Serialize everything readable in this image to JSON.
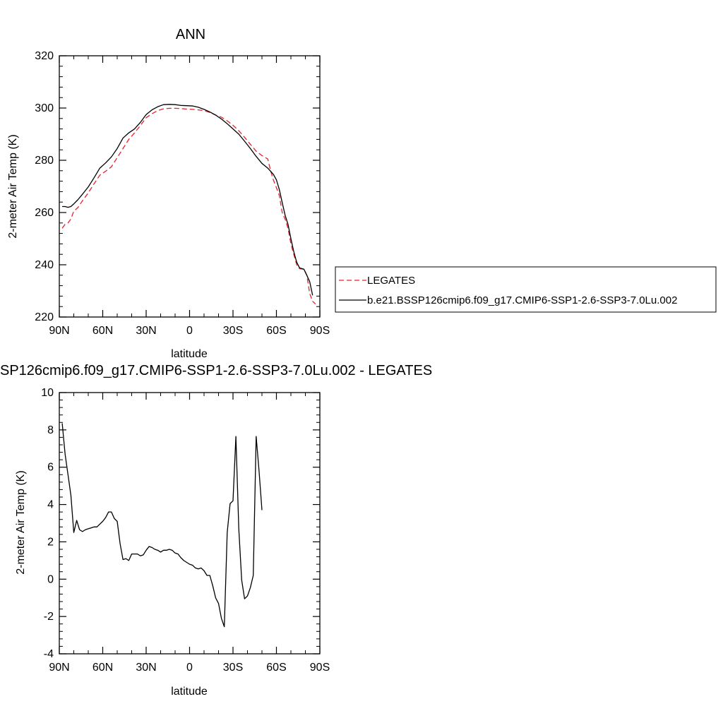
{
  "colors": {
    "obs": "#e8202a",
    "model": "#000000",
    "frame": "#000000"
  },
  "chart_data": [
    {
      "type": "line",
      "title": "ANN",
      "xlabel": "latitude",
      "ylabel": "2-meter Air Temp (K)",
      "x_range": [
        90,
        -90
      ],
      "x_ticks": [
        90,
        60,
        30,
        0,
        -30,
        -60,
        -90
      ],
      "x_tick_labels": [
        "90N",
        "60N",
        "30N",
        "0",
        "30S",
        "60S",
        "90S"
      ],
      "ylim": [
        220,
        320
      ],
      "y_ticks": [
        220,
        240,
        260,
        280,
        300,
        320
      ],
      "y_tick_labels": [
        "220",
        "240",
        "260",
        "280",
        "300",
        "320"
      ],
      "grid": false,
      "legend_position": "right",
      "series": [
        {
          "name": "LEGATES",
          "style": "dashed",
          "color": "#e8202a",
          "points": [
            [
              88,
              254
            ],
            [
              86,
              255.5
            ],
            [
              84,
              256
            ],
            [
              82,
              257.5
            ],
            [
              80,
              260.5
            ],
            [
              77,
              262
            ],
            [
              74,
              264.5
            ],
            [
              70,
              267.5
            ],
            [
              66,
              271
            ],
            [
              62,
              274.3
            ],
            [
              58,
              275.8
            ],
            [
              54,
              277.5
            ],
            [
              50,
              281
            ],
            [
              46,
              284.5
            ],
            [
              42,
              288
            ],
            [
              38,
              290.5
            ],
            [
              34,
              293.3
            ],
            [
              30,
              296.3
            ],
            [
              26,
              297.8
            ],
            [
              22,
              299
            ],
            [
              18,
              299.7
            ],
            [
              14,
              299.9
            ],
            [
              10,
              299.9
            ],
            [
              6,
              299.8
            ],
            [
              2,
              299.6
            ],
            [
              -2,
              299.5
            ],
            [
              -6,
              299.3
            ],
            [
              -10,
              299
            ],
            [
              -14,
              298.3
            ],
            [
              -18,
              297.3
            ],
            [
              -22,
              296.5
            ],
            [
              -26,
              295.1
            ],
            [
              -30,
              293.4
            ],
            [
              -34,
              291.3
            ],
            [
              -38,
              288.8
            ],
            [
              -42,
              286.1
            ],
            [
              -46,
              283.5
            ],
            [
              -50,
              281.8
            ],
            [
              -54,
              280.5
            ],
            [
              -56,
              276
            ],
            [
              -58,
              272.3
            ],
            [
              -60,
              269.5
            ],
            [
              -62,
              266.5
            ],
            [
              -64,
              260
            ],
            [
              -66,
              257.5
            ],
            [
              -68,
              254
            ],
            [
              -70,
              248
            ],
            [
              -72,
              244
            ],
            [
              -74,
              240
            ],
            [
              -76,
              238.5
            ],
            [
              -79,
              238.3
            ],
            [
              -81,
              236
            ],
            [
              -83,
              229
            ],
            [
              -85,
              226
            ],
            [
              -87,
              225
            ]
          ]
        },
        {
          "name": "b.e21.BSSP126cmip6.f09_g17.CMIP6-SSP1-2.6-SSP3-7.0Lu.002",
          "style": "solid",
          "color": "#000000",
          "points": [
            [
              88,
              262.3
            ],
            [
              86,
              262.3
            ],
            [
              84,
              262
            ],
            [
              82,
              262.3
            ],
            [
              80,
              263.3
            ],
            [
              77,
              265
            ],
            [
              74,
              267
            ],
            [
              70,
              269.8
            ],
            [
              66,
              273.3
            ],
            [
              62,
              277
            ],
            [
              58,
              279
            ],
            [
              54,
              281.3
            ],
            [
              50,
              284.5
            ],
            [
              46,
              288.5
            ],
            [
              42,
              290.5
            ],
            [
              38,
              292
            ],
            [
              34,
              294.5
            ],
            [
              30,
              297.5
            ],
            [
              26,
              299.3
            ],
            [
              22,
              300.5
            ],
            [
              18,
              301.3
            ],
            [
              14,
              301.4
            ],
            [
              10,
              301.3
            ],
            [
              6,
              301
            ],
            [
              2,
              300.9
            ],
            [
              -2,
              300.8
            ],
            [
              -6,
              300.3
            ],
            [
              -10,
              299.5
            ],
            [
              -14,
              298.5
            ],
            [
              -18,
              297.3
            ],
            [
              -22,
              295.8
            ],
            [
              -26,
              294
            ],
            [
              -30,
              292
            ],
            [
              -34,
              290
            ],
            [
              -38,
              287.3
            ],
            [
              -42,
              284.5
            ],
            [
              -46,
              281.5
            ],
            [
              -50,
              278.8
            ],
            [
              -54,
              277
            ],
            [
              -56,
              275.8
            ],
            [
              -58,
              274.5
            ],
            [
              -60,
              272.5
            ],
            [
              -62,
              268.8
            ],
            [
              -64,
              263.8
            ],
            [
              -66,
              259
            ],
            [
              -68,
              255.5
            ],
            [
              -70,
              250
            ],
            [
              -72,
              245
            ],
            [
              -74,
              241
            ],
            [
              -76,
              238.8
            ],
            [
              -79,
              238.3
            ],
            [
              -81,
              236
            ],
            [
              -83,
              233.5
            ],
            [
              -85,
              228.3
            ]
          ]
        }
      ]
    },
    {
      "type": "line",
      "title": "SP126cmip6.f09_g17.CMIP6-SSP1-2.6-SSP3-7.0Lu.002 - LEGATES",
      "xlabel": "latitude",
      "ylabel": "2-meter Air Temp (K)",
      "x_range": [
        90,
        -90
      ],
      "x_ticks": [
        90,
        60,
        30,
        0,
        -30,
        -60,
        -90
      ],
      "x_tick_labels": [
        "90N",
        "60N",
        "30N",
        "0",
        "30S",
        "60S",
        "90S"
      ],
      "ylim": [
        -4,
        10
      ],
      "y_ticks": [
        -4,
        -2,
        0,
        2,
        4,
        6,
        8,
        10
      ],
      "y_tick_labels": [
        "-4",
        "-2",
        "0",
        "2",
        "4",
        "6",
        "8",
        "10"
      ],
      "grid": false,
      "series": [
        {
          "style": "solid",
          "color": "#000000",
          "points": [
            [
              88,
              8.35
            ],
            [
              86,
              6.7
            ],
            [
              84,
              5.6
            ],
            [
              82,
              4.5
            ],
            [
              80,
              2.5
            ],
            [
              78,
              3.15
            ],
            [
              76,
              2.65
            ],
            [
              74,
              2.55
            ],
            [
              72,
              2.65
            ],
            [
              70,
              2.7
            ],
            [
              68,
              2.75
            ],
            [
              66,
              2.8
            ],
            [
              64,
              2.8
            ],
            [
              62,
              2.95
            ],
            [
              60,
              3.1
            ],
            [
              58,
              3.3
            ],
            [
              56,
              3.6
            ],
            [
              54,
              3.6
            ],
            [
              52,
              3.25
            ],
            [
              50,
              3.1
            ],
            [
              48,
              1.9
            ],
            [
              46,
              1.05
            ],
            [
              44,
              1.1
            ],
            [
              42,
              1.0
            ],
            [
              40,
              1.35
            ],
            [
              38,
              1.35
            ],
            [
              36,
              1.35
            ],
            [
              34,
              1.25
            ],
            [
              32,
              1.3
            ],
            [
              30,
              1.55
            ],
            [
              28,
              1.75
            ],
            [
              26,
              1.7
            ],
            [
              24,
              1.6
            ],
            [
              22,
              1.55
            ],
            [
              20,
              1.45
            ],
            [
              18,
              1.55
            ],
            [
              16,
              1.55
            ],
            [
              14,
              1.6
            ],
            [
              12,
              1.55
            ],
            [
              10,
              1.4
            ],
            [
              8,
              1.35
            ],
            [
              6,
              1.15
            ],
            [
              4,
              1.0
            ],
            [
              2,
              0.9
            ],
            [
              0,
              0.8
            ],
            [
              -2,
              0.75
            ],
            [
              -4,
              0.6
            ],
            [
              -6,
              0.55
            ],
            [
              -8,
              0.6
            ],
            [
              -10,
              0.45
            ],
            [
              -12,
              0.2
            ],
            [
              -14,
              0.2
            ],
            [
              -16,
              -0.35
            ],
            [
              -18,
              -1.0
            ],
            [
              -20,
              -1.3
            ],
            [
              -22,
              -2.1
            ],
            [
              -24,
              -2.55
            ],
            [
              -26,
              2.5
            ],
            [
              -28,
              4.05
            ],
            [
              -30,
              4.2
            ],
            [
              -32,
              7.65
            ],
            [
              -34,
              2.7
            ],
            [
              -36,
              -0.05
            ],
            [
              -38,
              -1.05
            ],
            [
              -40,
              -0.9
            ],
            [
              -42,
              -0.45
            ],
            [
              -44,
              0.2
            ],
            [
              -46,
              7.65
            ],
            [
              -48,
              5.8
            ],
            [
              -50,
              3.7
            ]
          ]
        }
      ]
    }
  ]
}
